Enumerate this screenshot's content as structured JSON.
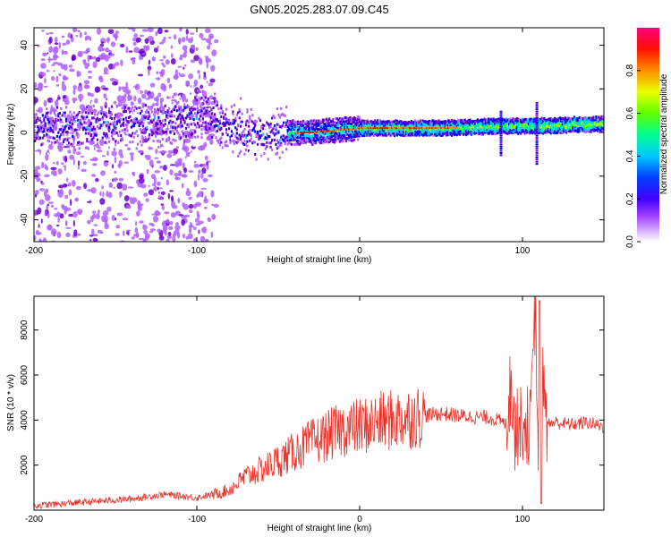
{
  "figure": {
    "title": "GN05.2025.283.07.09.C45"
  },
  "chart_data": [
    {
      "type": "heatmap",
      "title": "GN05.2025.283.07.09.C45",
      "xlabel": "Height of straight line (km)",
      "ylabel": "Frequency (Hz)",
      "xlim": [
        -200,
        150
      ],
      "ylim": [
        -50,
        48
      ],
      "x_ticks": [
        -200,
        -100,
        0,
        100
      ],
      "x_tick_labels": [
        "-200",
        "-100",
        "0",
        "100"
      ],
      "y_ticks": [
        -40,
        -20,
        0,
        20,
        40
      ],
      "y_tick_labels": [
        "-40",
        "-20",
        "0",
        "20",
        "40"
      ],
      "colorbar": {
        "label": "Normalized spectral amplitude",
        "range": [
          0,
          1
        ],
        "ticks": [
          0,
          0.2,
          0.4,
          0.6,
          0.8
        ],
        "tick_labels": [
          "0.0",
          "0.2",
          "0.4",
          "0.6",
          "0.8"
        ],
        "colormap": [
          "#ffffff",
          "#b060ff",
          "#6a00d0",
          "#0000ff",
          "#00ccff",
          "#00ff80",
          "#a0ff00",
          "#ffff00",
          "#ff8000",
          "#ff0000",
          "#ff0080"
        ]
      },
      "ridge": {
        "description_points": [
          [
            -200,
            3
          ],
          [
            -150,
            4
          ],
          [
            -120,
            5
          ],
          [
            -100,
            8
          ],
          [
            -90,
            6
          ],
          [
            -80,
            2
          ],
          [
            -60,
            -2
          ],
          [
            -45,
            0
          ],
          [
            -30,
            0
          ],
          [
            0,
            2
          ],
          [
            50,
            2
          ],
          [
            90,
            3
          ],
          [
            110,
            3
          ],
          [
            150,
            4
          ]
        ]
      },
      "grid": false
    },
    {
      "type": "line",
      "xlabel": "Height of straight line (km)",
      "ylabel": "SNR (10 * v/v)",
      "xlim": [
        -200,
        150
      ],
      "ylim": [
        0,
        9500
      ],
      "x_ticks": [
        -200,
        -100,
        0,
        100
      ],
      "x_tick_labels": [
        "-200",
        "-100",
        "0",
        "100"
      ],
      "y_ticks": [
        2000,
        4000,
        6000,
        8000
      ],
      "y_tick_labels": [
        "2000",
        "4000",
        "6000",
        "8000"
      ],
      "color": "#e8332a",
      "grid": false,
      "series": [
        {
          "x": [
            -200,
            -180,
            -160,
            -140,
            -120,
            -100,
            -90,
            -80,
            -70,
            -60,
            -50,
            -40,
            -30,
            -20,
            -10,
            0,
            10,
            20,
            30,
            40,
            50,
            60,
            70,
            80,
            85,
            90,
            93,
            95,
            100,
            105,
            108,
            110,
            112,
            115,
            120,
            130,
            140,
            150
          ],
          "values": [
            200,
            300,
            400,
            500,
            700,
            550,
            700,
            900,
            1500,
            1800,
            2200,
            2600,
            3000,
            3300,
            3600,
            3700,
            3900,
            4000,
            4100,
            4200,
            4300,
            4200,
            4150,
            4100,
            4000,
            3800,
            5600,
            3500,
            3900,
            3700,
            9200,
            500,
            6000,
            3800,
            3900,
            3800,
            3900,
            3700
          ]
        }
      ]
    }
  ]
}
